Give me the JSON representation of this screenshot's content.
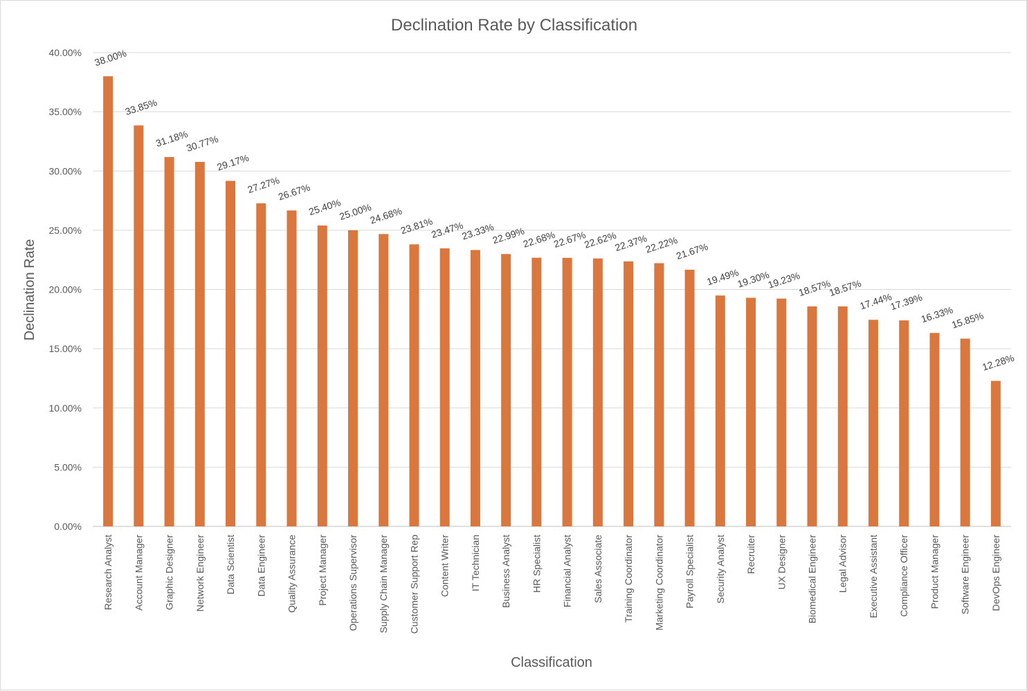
{
  "chart_data": {
    "type": "bar",
    "title": "Declination Rate by Classification",
    "xlabel": "Classification",
    "ylabel": "Declination Rate",
    "ylim": [
      0,
      40
    ],
    "yticks": [
      0,
      5,
      10,
      15,
      20,
      25,
      30,
      35,
      40
    ],
    "ytick_labels": [
      "0.00%",
      "5.00%",
      "10.00%",
      "15.00%",
      "20.00%",
      "25.00%",
      "30.00%",
      "35.00%",
      "40.00%"
    ],
    "grid": true,
    "legend": "none",
    "bar_color": "#D9773F",
    "categories": [
      "Research Analyst",
      "Account Manager",
      "Graphic Designer",
      "Network Engineer",
      "Data Scientist",
      "Data Engineer",
      "Quality Assurance",
      "Project Manager",
      "Operations Supervisor",
      "Supply Chain Manager",
      "Customer Support Rep",
      "Content Writer",
      "IT Technician",
      "Business Analyst",
      "HR Specialist",
      "Financial Analyst",
      "Sales Associate",
      "Training Coordinator",
      "Marketing Coordinator",
      "Payroll Specialist",
      "Security Analyst",
      "Recruiter",
      "UX Designer",
      "Biomedical Engineer",
      "Legal Advisor",
      "Executive Assistant",
      "Compliance Officer",
      "Product Manager",
      "Software Engineer",
      "DevOps Engineer"
    ],
    "values": [
      38.0,
      33.85,
      31.18,
      30.77,
      29.17,
      27.27,
      26.67,
      25.4,
      25.0,
      24.68,
      23.81,
      23.47,
      23.33,
      22.99,
      22.68,
      22.67,
      22.62,
      22.37,
      22.22,
      21.67,
      19.49,
      19.3,
      19.23,
      18.57,
      18.57,
      17.44,
      17.39,
      16.33,
      15.85,
      12.28
    ],
    "data_labels": [
      "38.00%",
      "33.85%",
      "31.18%",
      "30.77%",
      "29.17%",
      "27.27%",
      "26.67%",
      "25.40%",
      "25.00%",
      "24.68%",
      "23.81%",
      "23.47%",
      "23.33%",
      "22.99%",
      "22.68%",
      "22.67%",
      "22.62%",
      "22.37%",
      "22.22%",
      "21.67%",
      "19.49%",
      "19.30%",
      "19.23%",
      "18.57%",
      "18.57%",
      "17.44%",
      "17.39%",
      "16.33%",
      "15.85%",
      "12.28%"
    ]
  }
}
